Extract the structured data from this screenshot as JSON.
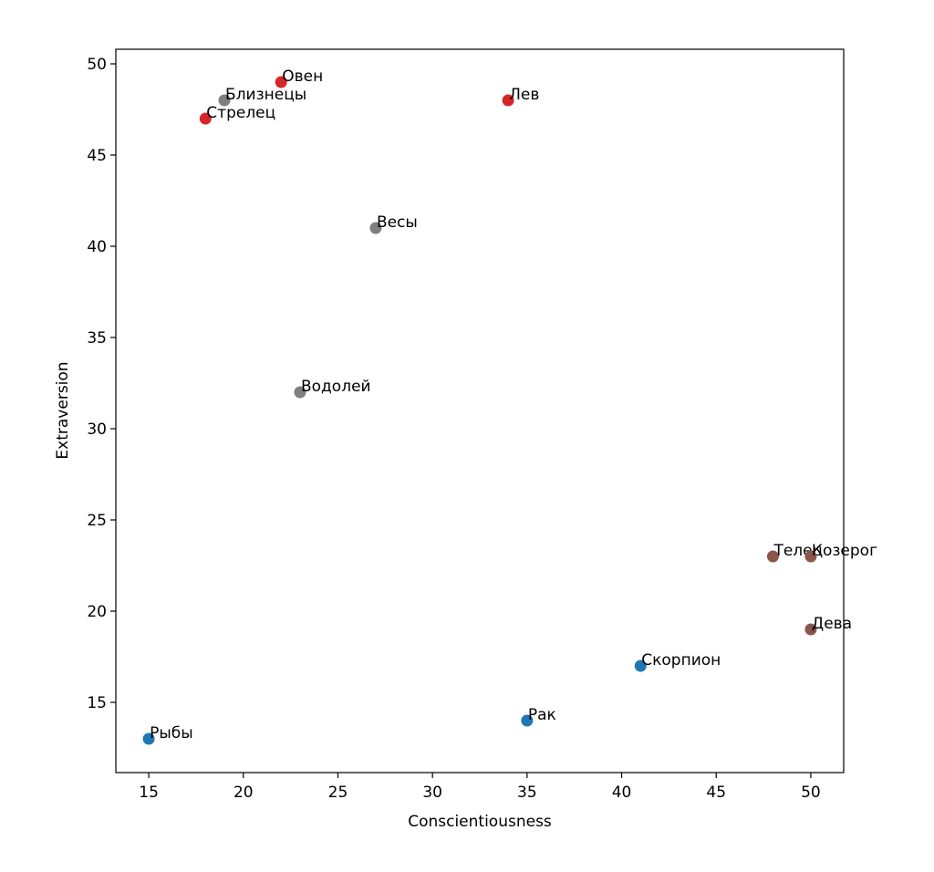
{
  "chart_data": {
    "type": "scatter",
    "x_label": "Conscientiousness",
    "y_label": "Extraversion",
    "labels": [
      "Овен",
      "Близнецы",
      "Стрелец",
      "Лев",
      "Весы",
      "Водолей",
      "Телец",
      "Козерог",
      "Дева",
      "Скорпион",
      "Рак",
      "Рыбы"
    ],
    "x": [
      22,
      19,
      18,
      34,
      27,
      23,
      48,
      50,
      50,
      41,
      35,
      15
    ],
    "values": [
      49,
      48,
      47,
      48,
      41,
      32,
      23,
      23,
      19,
      17,
      14,
      13
    ],
    "colors": [
      "#d62728",
      "#7f7f7f",
      "#d62728",
      "#d62728",
      "#7f7f7f",
      "#7f7f7f",
      "#8c564b",
      "#8c564b",
      "#8c564b",
      "#1f77b4",
      "#1f77b4",
      "#1f77b4"
    ],
    "xlim": [
      13.26,
      51.74
    ],
    "ylim": [
      11.15,
      50.8
    ],
    "xticks": [
      15,
      20,
      25,
      30,
      35,
      40,
      45,
      50
    ],
    "yticks": [
      15,
      20,
      25,
      30,
      35,
      40,
      45,
      50
    ]
  }
}
